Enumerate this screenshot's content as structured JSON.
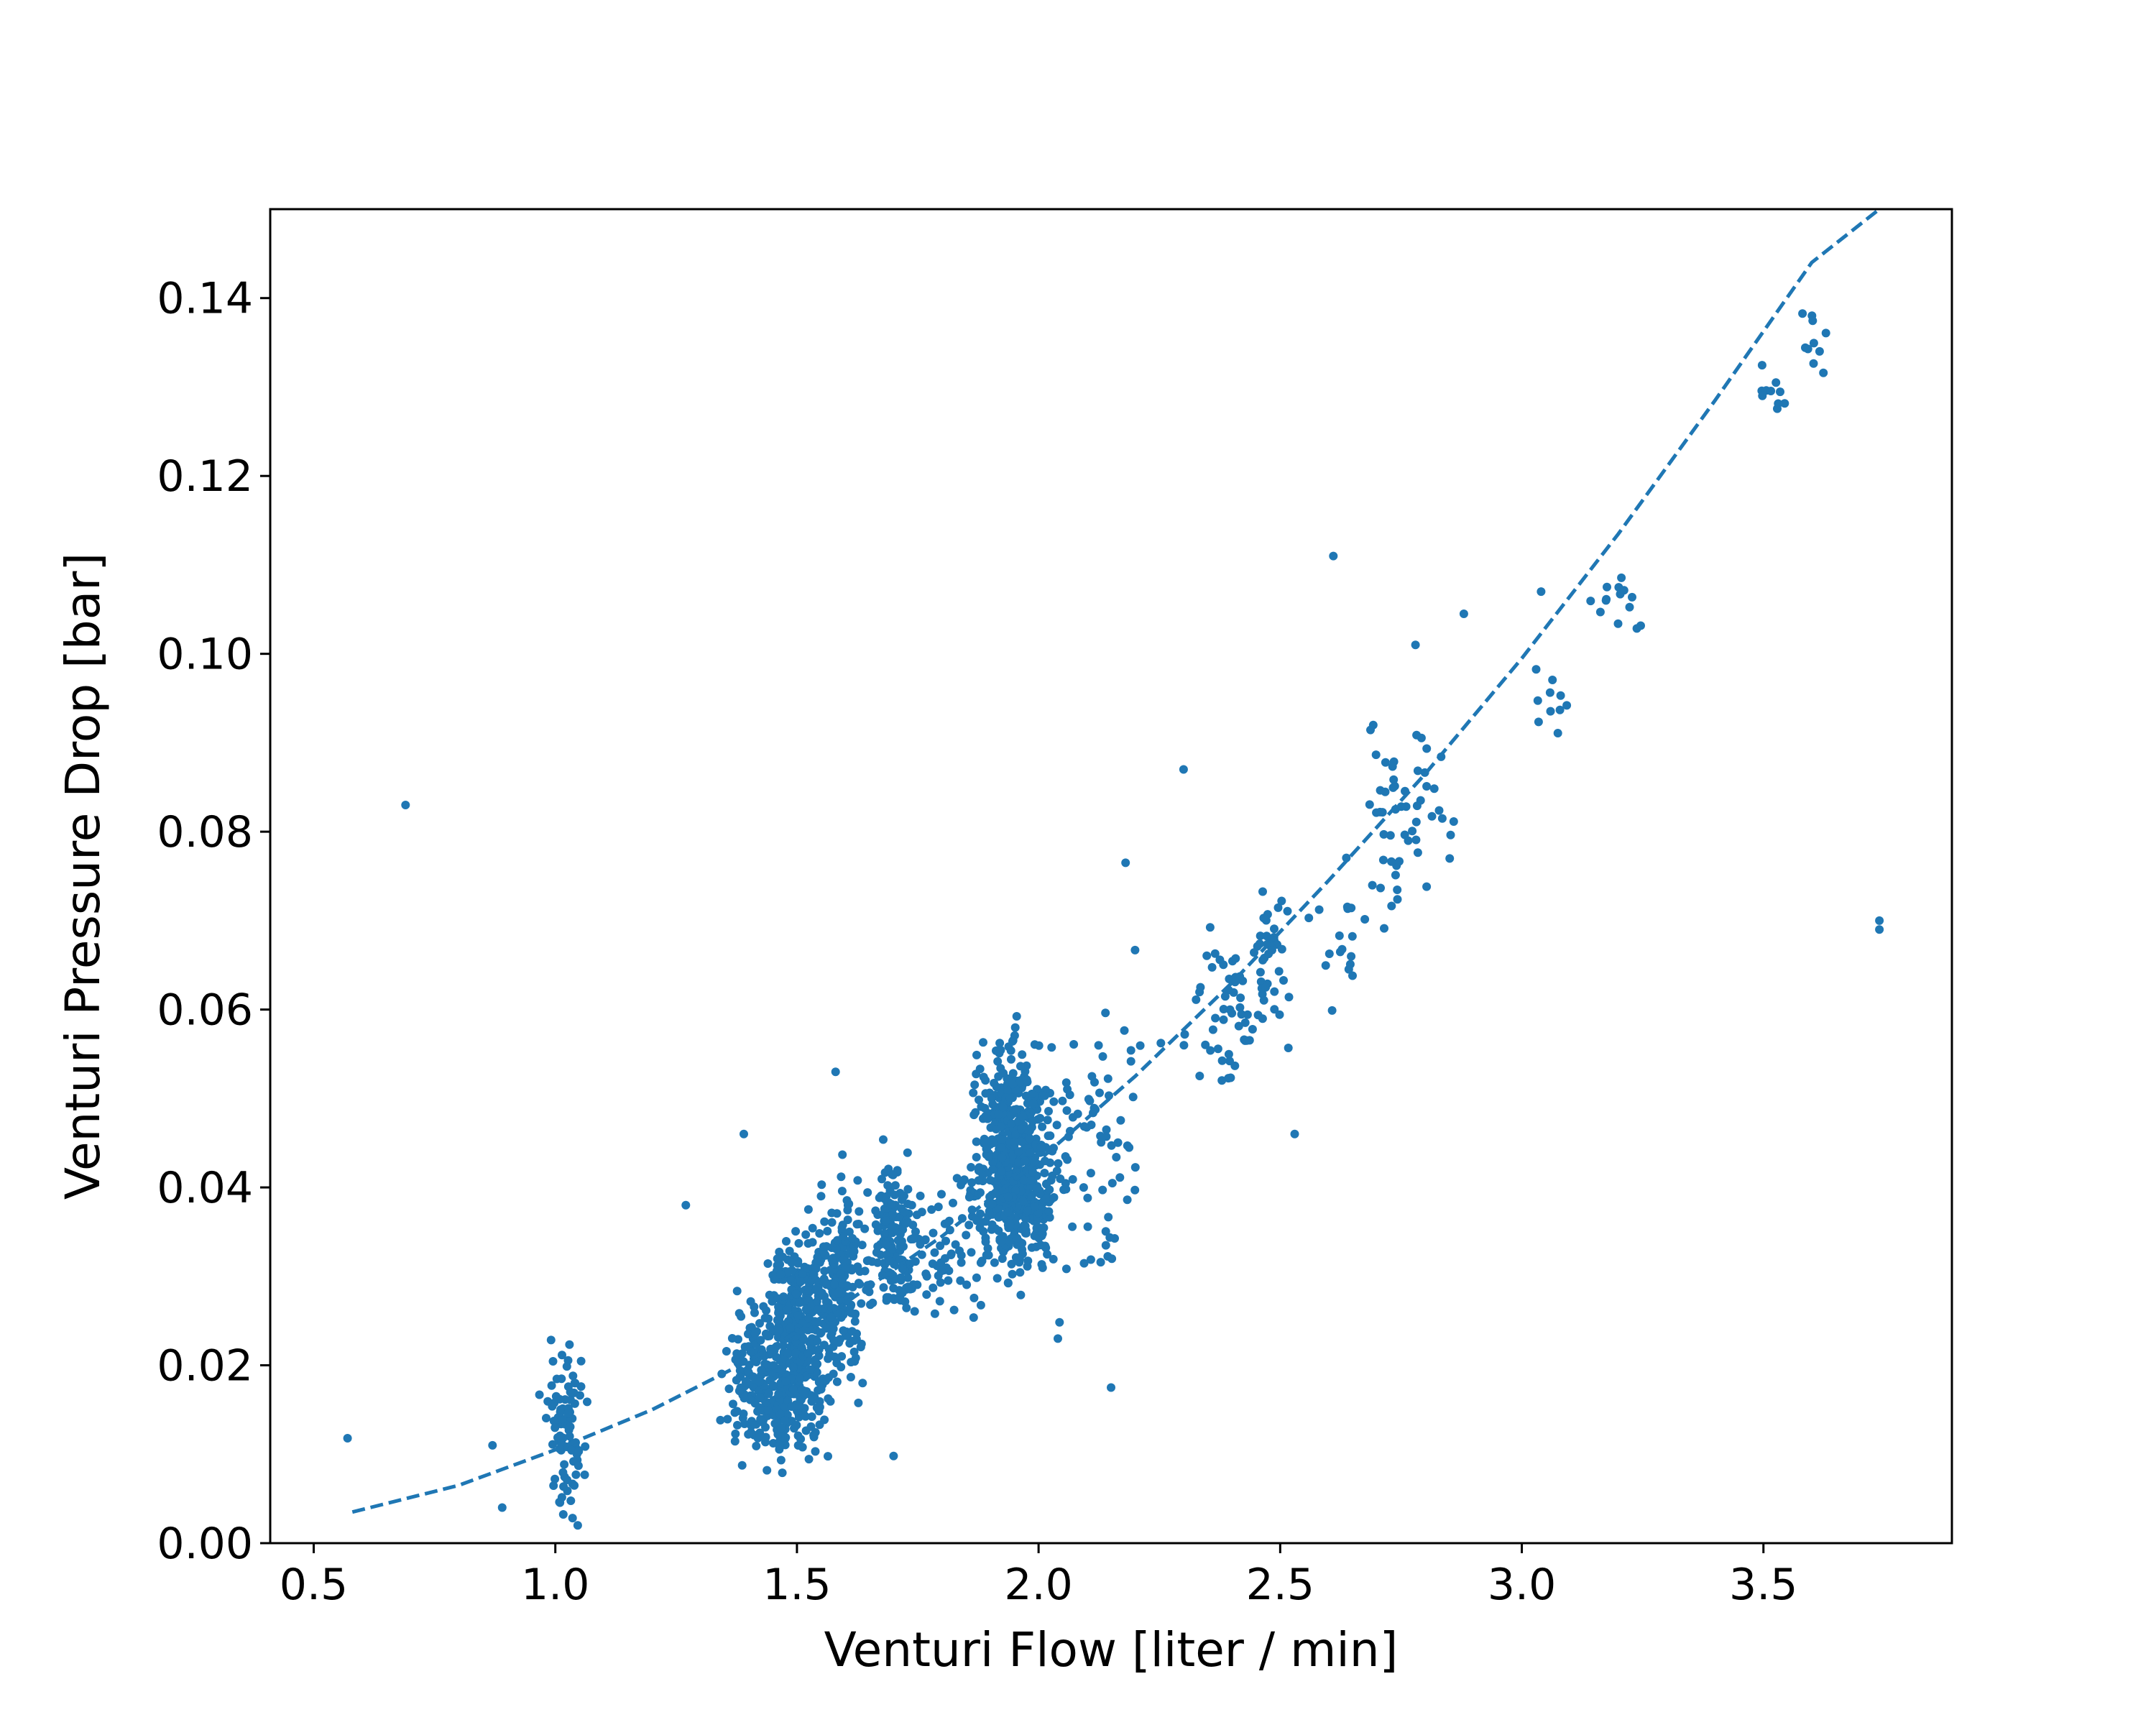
{
  "chart_data": {
    "type": "scatter",
    "xlabel": "Venturi Flow [liter / min]",
    "ylabel": "Venturi Pressure Drop [bar]",
    "xlim": [
      0.41,
      3.89
    ],
    "ylim": [
      0.0,
      0.15
    ],
    "xticks": [
      "0.5",
      "1.0",
      "1.5",
      "2.0",
      "2.5",
      "3.0",
      "3.5"
    ],
    "yticks": [
      "0.00",
      "0.02",
      "0.04",
      "0.06",
      "0.08",
      "0.10",
      "0.12",
      "0.14"
    ],
    "grid": false,
    "legend": "none",
    "color": "#1f77b4",
    "fit_curve": {
      "style": "dashed",
      "x": [
        0.58,
        0.8,
        1.0,
        1.2,
        1.4,
        1.6,
        1.8,
        2.0,
        2.2,
        2.4,
        2.6,
        2.8,
        3.0,
        3.2,
        3.4,
        3.6,
        3.74
      ],
      "y": [
        0.0035,
        0.0065,
        0.0105,
        0.015,
        0.0205,
        0.027,
        0.0345,
        0.043,
        0.0525,
        0.063,
        0.0745,
        0.0865,
        0.0995,
        0.1135,
        0.1285,
        0.144,
        0.15
      ]
    },
    "clusters": [
      {
        "x": 1.02,
        "y": 0.0125,
        "sx": 0.02,
        "sy": 0.0045,
        "n": 90
      },
      {
        "x": 1.42,
        "y": 0.018,
        "sx": 0.03,
        "sy": 0.004,
        "n": 160
      },
      {
        "x": 1.5,
        "y": 0.022,
        "sx": 0.03,
        "sy": 0.006,
        "n": 420
      },
      {
        "x": 1.59,
        "y": 0.029,
        "sx": 0.03,
        "sy": 0.005,
        "n": 200
      },
      {
        "x": 1.7,
        "y": 0.034,
        "sx": 0.03,
        "sy": 0.004,
        "n": 170
      },
      {
        "x": 1.82,
        "y": 0.034,
        "sx": 0.03,
        "sy": 0.004,
        "n": 50
      },
      {
        "x": 1.95,
        "y": 0.043,
        "sx": 0.04,
        "sy": 0.006,
        "n": 650
      },
      {
        "x": 2.12,
        "y": 0.046,
        "sx": 0.05,
        "sy": 0.008,
        "n": 70
      },
      {
        "x": 2.4,
        "y": 0.06,
        "sx": 0.05,
        "sy": 0.005,
        "n": 55
      },
      {
        "x": 2.48,
        "y": 0.067,
        "sx": 0.02,
        "sy": 0.004,
        "n": 35
      },
      {
        "x": 2.62,
        "y": 0.068,
        "sx": 0.03,
        "sy": 0.004,
        "n": 18
      },
      {
        "x": 2.76,
        "y": 0.082,
        "sx": 0.04,
        "sy": 0.005,
        "n": 55
      },
      {
        "x": 3.06,
        "y": 0.096,
        "sx": 0.02,
        "sy": 0.003,
        "n": 10
      },
      {
        "x": 3.2,
        "y": 0.106,
        "sx": 0.03,
        "sy": 0.002,
        "n": 14
      },
      {
        "x": 3.52,
        "y": 0.129,
        "sx": 0.02,
        "sy": 0.002,
        "n": 10
      },
      {
        "x": 3.61,
        "y": 0.137,
        "sx": 0.02,
        "sy": 0.003,
        "n": 10
      }
    ],
    "outliers": [
      {
        "x": 0.57,
        "y": 0.0118
      },
      {
        "x": 0.69,
        "y": 0.083
      },
      {
        "x": 0.87,
        "y": 0.011
      },
      {
        "x": 0.89,
        "y": 0.004
      },
      {
        "x": 1.27,
        "y": 0.038
      },
      {
        "x": 1.39,
        "y": 0.046
      },
      {
        "x": 1.58,
        "y": 0.053
      },
      {
        "x": 1.7,
        "y": 0.0098
      },
      {
        "x": 2.04,
        "y": 0.023
      },
      {
        "x": 2.15,
        "y": 0.0175
      },
      {
        "x": 2.18,
        "y": 0.0765
      },
      {
        "x": 2.3,
        "y": 0.087
      },
      {
        "x": 2.53,
        "y": 0.046
      },
      {
        "x": 2.61,
        "y": 0.111
      },
      {
        "x": 2.78,
        "y": 0.101
      },
      {
        "x": 2.88,
        "y": 0.1045
      },
      {
        "x": 3.04,
        "y": 0.107
      },
      {
        "x": 3.74,
        "y": 0.07
      },
      {
        "x": 3.74,
        "y": 0.069
      }
    ]
  }
}
